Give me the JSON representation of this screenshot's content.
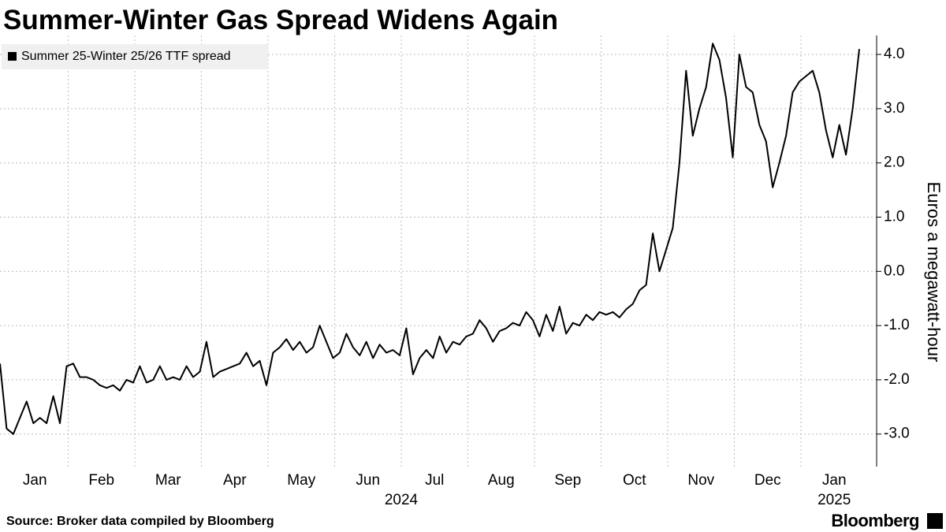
{
  "chart_data": {
    "type": "line",
    "title": "Summer-Winter Gas Spread Widens Again",
    "y_axis_label": "Euros a megawatt-hour",
    "source": "Source: Broker data compiled by Bloomberg",
    "brand": "Bloomberg",
    "x_axis_years": [
      "2024",
      "2025"
    ],
    "categories": [
      "Jan",
      null,
      null,
      null,
      null,
      null,
      null,
      null,
      null,
      null,
      "Feb",
      null,
      null,
      null,
      null,
      null,
      null,
      null,
      null,
      null,
      "Mar",
      null,
      null,
      null,
      null,
      null,
      null,
      null,
      null,
      null,
      "Apr",
      null,
      null,
      null,
      null,
      null,
      null,
      null,
      null,
      null,
      "May",
      null,
      null,
      null,
      null,
      null,
      null,
      null,
      null,
      null,
      "Jun",
      null,
      null,
      null,
      null,
      null,
      null,
      null,
      null,
      null,
      "Jul",
      null,
      null,
      null,
      null,
      null,
      null,
      null,
      null,
      null,
      "Aug",
      null,
      null,
      null,
      null,
      null,
      null,
      null,
      null,
      null,
      "Sep",
      null,
      null,
      null,
      null,
      null,
      null,
      null,
      null,
      null,
      "Oct",
      null,
      null,
      null,
      null,
      null,
      null,
      null,
      null,
      null,
      "Nov",
      null,
      null,
      null,
      null,
      null,
      null,
      null,
      null,
      null,
      "Dec",
      null,
      null,
      null,
      null,
      null,
      null,
      null,
      null,
      null,
      "Jan",
      null,
      null,
      null,
      null,
      null,
      null,
      null,
      null,
      null
    ],
    "series": [
      {
        "name": "Summer 25-Winter 25/26 TTF spread",
        "color": "#000000",
        "values": [
          -1.7,
          -2.9,
          -3.0,
          -2.7,
          -2.4,
          -2.8,
          -2.7,
          -2.8,
          -2.3,
          -2.8,
          -1.75,
          -1.7,
          -1.95,
          -1.95,
          -2.0,
          -2.1,
          -2.15,
          -2.1,
          -2.2,
          -2.0,
          -2.05,
          -1.75,
          -2.05,
          -2.0,
          -1.75,
          -2.0,
          -1.95,
          -2.0,
          -1.75,
          -1.95,
          -1.85,
          -1.3,
          -1.95,
          -1.85,
          -1.8,
          -1.75,
          -1.7,
          -1.5,
          -1.75,
          -1.65,
          -2.1,
          -1.5,
          -1.4,
          -1.25,
          -1.45,
          -1.3,
          -1.5,
          -1.4,
          -1.0,
          -1.3,
          -1.6,
          -1.5,
          -1.15,
          -1.4,
          -1.55,
          -1.3,
          -1.6,
          -1.35,
          -1.5,
          -1.45,
          -1.55,
          -1.05,
          -1.9,
          -1.6,
          -1.45,
          -1.6,
          -1.2,
          -1.5,
          -1.3,
          -1.35,
          -1.2,
          -1.15,
          -0.9,
          -1.05,
          -1.3,
          -1.1,
          -1.05,
          -0.95,
          -1.0,
          -0.75,
          -0.9,
          -1.2,
          -0.8,
          -1.1,
          -0.65,
          -1.15,
          -0.95,
          -1.0,
          -0.8,
          -0.9,
          -0.75,
          -0.8,
          -0.75,
          -0.85,
          -0.7,
          -0.6,
          -0.35,
          -0.25,
          0.7,
          0.0,
          0.4,
          0.8,
          2.0,
          3.7,
          2.5,
          3.0,
          3.4,
          4.2,
          3.9,
          3.2,
          2.1,
          4.0,
          3.4,
          3.3,
          2.7,
          2.4,
          1.55,
          2.0,
          2.5,
          3.3,
          3.5,
          3.6,
          3.7,
          3.3,
          2.6,
          2.1,
          2.7,
          2.15,
          3.0,
          4.1
        ]
      }
    ],
    "ylim": [
      -3.6,
      4.35
    ],
    "yticks": [
      {
        "value": -3,
        "label": "-3.0"
      },
      {
        "value": -2,
        "label": "-2.0"
      },
      {
        "value": -1,
        "label": "-1.0"
      },
      {
        "value": 0,
        "label": "0.0"
      },
      {
        "value": 1,
        "label": "1.0"
      },
      {
        "value": 2,
        "label": "2.0"
      },
      {
        "value": 3,
        "label": "3.0"
      },
      {
        "value": 4,
        "label": "4.0"
      }
    ],
    "grid": true,
    "legend": "top-left"
  }
}
